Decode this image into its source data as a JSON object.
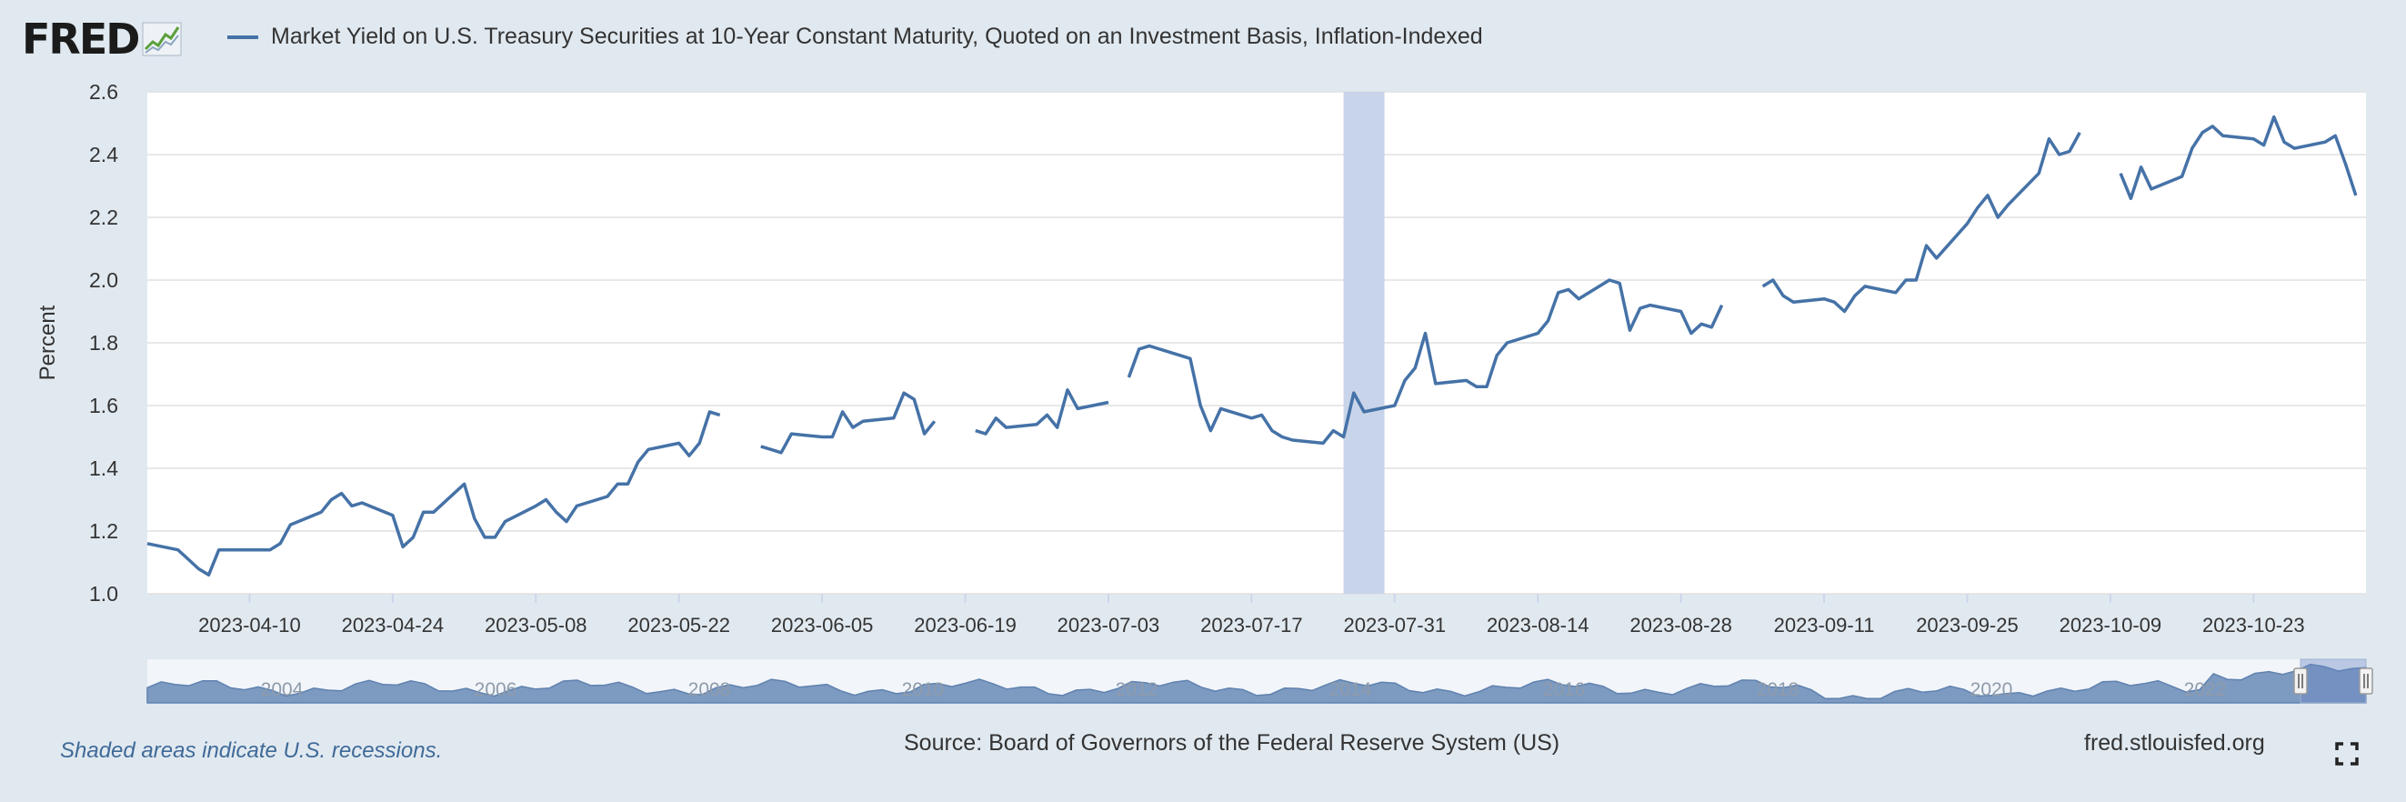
{
  "header": {
    "logo_text": "FRED",
    "series_legend": "Market Yield on U.S. Treasury Securities at 10-Year Constant Maturity, Quoted on an Investment Basis, Inflation-Indexed"
  },
  "footer": {
    "recession_note": "Shaded areas indicate U.S. recessions.",
    "source": "Source: Board of Governors of the Federal Reserve System (US)",
    "site": "fred.stlouisfed.org"
  },
  "icons": {
    "logo_graph": "line-graph-icon",
    "fullscreen": "fullscreen-icon"
  },
  "colors": {
    "line": "#4572a7",
    "recession": "#c8d4ea",
    "background": "#e1e9f0",
    "plot_bg": "#ffffff"
  },
  "chart_data": {
    "type": "line",
    "title": "",
    "xlabel": "",
    "ylabel": "Percent",
    "ylim": [
      1.0,
      2.6
    ],
    "yticks": [
      1.0,
      1.2,
      1.4,
      1.6,
      1.8,
      2.0,
      2.2,
      2.4,
      2.6
    ],
    "xlim": [
      "2023-03-31",
      "2023-11-03"
    ],
    "xticks": [
      "2023-04-10",
      "2023-04-24",
      "2023-05-08",
      "2023-05-22",
      "2023-06-05",
      "2023-06-19",
      "2023-07-03",
      "2023-07-17",
      "2023-07-31",
      "2023-08-14",
      "2023-08-28",
      "2023-09-11",
      "2023-09-25",
      "2023-10-09",
      "2023-10-23"
    ],
    "grid": true,
    "legend": "top-left",
    "recession_shading": [
      "2023-07-26",
      "2023-07-30"
    ],
    "series": [
      {
        "name": "Market Yield on U.S. Treasury Securities at 10-Year Constant Maturity, Quoted on an Investment Basis, Inflation-Indexed",
        "segments": [
          [
            [
              "2023-03-31",
              1.16
            ],
            [
              "2023-04-03",
              1.14
            ],
            [
              "2023-04-04",
              1.11
            ],
            [
              "2023-04-05",
              1.08
            ],
            [
              "2023-04-06",
              1.06
            ],
            [
              "2023-04-07",
              1.14
            ],
            [
              "2023-04-10",
              1.14
            ],
            [
              "2023-04-11",
              1.14
            ],
            [
              "2023-04-12",
              1.14
            ],
            [
              "2023-04-13",
              1.16
            ],
            [
              "2023-04-14",
              1.22
            ],
            [
              "2023-04-17",
              1.26
            ],
            [
              "2023-04-18",
              1.3
            ],
            [
              "2023-04-19",
              1.32
            ],
            [
              "2023-04-20",
              1.28
            ],
            [
              "2023-04-21",
              1.29
            ],
            [
              "2023-04-24",
              1.25
            ],
            [
              "2023-04-25",
              1.15
            ],
            [
              "2023-04-26",
              1.18
            ],
            [
              "2023-04-27",
              1.26
            ],
            [
              "2023-04-28",
              1.26
            ],
            [
              "2023-05-01",
              1.35
            ],
            [
              "2023-05-02",
              1.24
            ],
            [
              "2023-05-03",
              1.18
            ],
            [
              "2023-05-04",
              1.18
            ],
            [
              "2023-05-05",
              1.23
            ],
            [
              "2023-05-08",
              1.28
            ],
            [
              "2023-05-09",
              1.3
            ],
            [
              "2023-05-10",
              1.26
            ],
            [
              "2023-05-11",
              1.23
            ],
            [
              "2023-05-12",
              1.28
            ],
            [
              "2023-05-15",
              1.31
            ],
            [
              "2023-05-16",
              1.35
            ],
            [
              "2023-05-17",
              1.35
            ],
            [
              "2023-05-18",
              1.42
            ],
            [
              "2023-05-19",
              1.46
            ],
            [
              "2023-05-22",
              1.48
            ],
            [
              "2023-05-23",
              1.44
            ],
            [
              "2023-05-24",
              1.48
            ],
            [
              "2023-05-25",
              1.58
            ],
            [
              "2023-05-26",
              1.57
            ]
          ],
          [
            [
              "2023-05-30",
              1.47
            ],
            [
              "2023-05-31",
              1.46
            ],
            [
              "2023-06-01",
              1.45
            ],
            [
              "2023-06-02",
              1.51
            ],
            [
              "2023-06-05",
              1.5
            ],
            [
              "2023-06-06",
              1.5
            ],
            [
              "2023-06-07",
              1.58
            ],
            [
              "2023-06-08",
              1.53
            ],
            [
              "2023-06-09",
              1.55
            ],
            [
              "2023-06-12",
              1.56
            ],
            [
              "2023-06-13",
              1.64
            ],
            [
              "2023-06-14",
              1.62
            ],
            [
              "2023-06-15",
              1.51
            ],
            [
              "2023-06-16",
              1.55
            ]
          ],
          [
            [
              "2023-06-20",
              1.52
            ],
            [
              "2023-06-21",
              1.51
            ],
            [
              "2023-06-22",
              1.56
            ],
            [
              "2023-06-23",
              1.53
            ],
            [
              "2023-06-26",
              1.54
            ],
            [
              "2023-06-27",
              1.57
            ],
            [
              "2023-06-28",
              1.53
            ],
            [
              "2023-06-29",
              1.65
            ],
            [
              "2023-06-30",
              1.59
            ],
            [
              "2023-07-03",
              1.61
            ]
          ],
          [
            [
              "2023-07-05",
              1.69
            ],
            [
              "2023-07-06",
              1.78
            ],
            [
              "2023-07-07",
              1.79
            ],
            [
              "2023-07-10",
              1.76
            ],
            [
              "2023-07-11",
              1.75
            ],
            [
              "2023-07-12",
              1.6
            ],
            [
              "2023-07-13",
              1.52
            ],
            [
              "2023-07-14",
              1.59
            ],
            [
              "2023-07-17",
              1.56
            ],
            [
              "2023-07-18",
              1.57
            ],
            [
              "2023-07-19",
              1.52
            ],
            [
              "2023-07-20",
              1.5
            ],
            [
              "2023-07-21",
              1.49
            ],
            [
              "2023-07-24",
              1.48
            ],
            [
              "2023-07-25",
              1.52
            ],
            [
              "2023-07-26",
              1.5
            ],
            [
              "2023-07-27",
              1.64
            ],
            [
              "2023-07-28",
              1.58
            ],
            [
              "2023-07-31",
              1.6
            ],
            [
              "2023-08-01",
              1.68
            ],
            [
              "2023-08-02",
              1.72
            ],
            [
              "2023-08-03",
              1.83
            ],
            [
              "2023-08-04",
              1.67
            ],
            [
              "2023-08-07",
              1.68
            ],
            [
              "2023-08-08",
              1.66
            ],
            [
              "2023-08-09",
              1.66
            ],
            [
              "2023-08-10",
              1.76
            ],
            [
              "2023-08-11",
              1.8
            ],
            [
              "2023-08-14",
              1.83
            ],
            [
              "2023-08-15",
              1.87
            ],
            [
              "2023-08-16",
              1.96
            ],
            [
              "2023-08-17",
              1.97
            ],
            [
              "2023-08-18",
              1.94
            ],
            [
              "2023-08-21",
              2.0
            ],
            [
              "2023-08-22",
              1.99
            ],
            [
              "2023-08-23",
              1.84
            ],
            [
              "2023-08-24",
              1.91
            ],
            [
              "2023-08-25",
              1.92
            ],
            [
              "2023-08-28",
              1.9
            ],
            [
              "2023-08-29",
              1.83
            ],
            [
              "2023-08-30",
              1.86
            ],
            [
              "2023-08-31",
              1.85
            ],
            [
              "2023-09-01",
              1.92
            ]
          ],
          [
            [
              "2023-09-05",
              1.98
            ],
            [
              "2023-09-06",
              2.0
            ],
            [
              "2023-09-07",
              1.95
            ],
            [
              "2023-09-08",
              1.93
            ],
            [
              "2023-09-11",
              1.94
            ],
            [
              "2023-09-12",
              1.93
            ],
            [
              "2023-09-13",
              1.9
            ],
            [
              "2023-09-14",
              1.95
            ],
            [
              "2023-09-15",
              1.98
            ],
            [
              "2023-09-18",
              1.96
            ],
            [
              "2023-09-19",
              2.0
            ],
            [
              "2023-09-20",
              2.0
            ],
            [
              "2023-09-21",
              2.11
            ],
            [
              "2023-09-22",
              2.07
            ],
            [
              "2023-09-25",
              2.18
            ],
            [
              "2023-09-26",
              2.23
            ],
            [
              "2023-09-27",
              2.27
            ],
            [
              "2023-09-28",
              2.2
            ],
            [
              "2023-09-29",
              2.24
            ],
            [
              "2023-10-02",
              2.34
            ],
            [
              "2023-10-03",
              2.45
            ],
            [
              "2023-10-04",
              2.4
            ],
            [
              "2023-10-05",
              2.41
            ],
            [
              "2023-10-06",
              2.47
            ]
          ],
          [
            [
              "2023-10-10",
              2.34
            ],
            [
              "2023-10-11",
              2.26
            ],
            [
              "2023-10-12",
              2.36
            ],
            [
              "2023-10-13",
              2.29
            ],
            [
              "2023-10-16",
              2.33
            ],
            [
              "2023-10-17",
              2.42
            ],
            [
              "2023-10-18",
              2.47
            ],
            [
              "2023-10-19",
              2.49
            ],
            [
              "2023-10-20",
              2.46
            ],
            [
              "2023-10-23",
              2.45
            ],
            [
              "2023-10-24",
              2.43
            ],
            [
              "2023-10-25",
              2.52
            ],
            [
              "2023-10-26",
              2.44
            ],
            [
              "2023-10-27",
              2.42
            ],
            [
              "2023-10-30",
              2.44
            ],
            [
              "2023-10-31",
              2.46
            ],
            [
              "2023-11-01",
              2.37
            ],
            [
              "2023-11-02",
              2.27
            ]
          ]
        ]
      }
    ],
    "navigator": {
      "year_labels": [
        "2004",
        "2006",
        "2008",
        "2010",
        "2012",
        "2014",
        "2016",
        "2018",
        "2020",
        "2022"
      ]
    }
  }
}
